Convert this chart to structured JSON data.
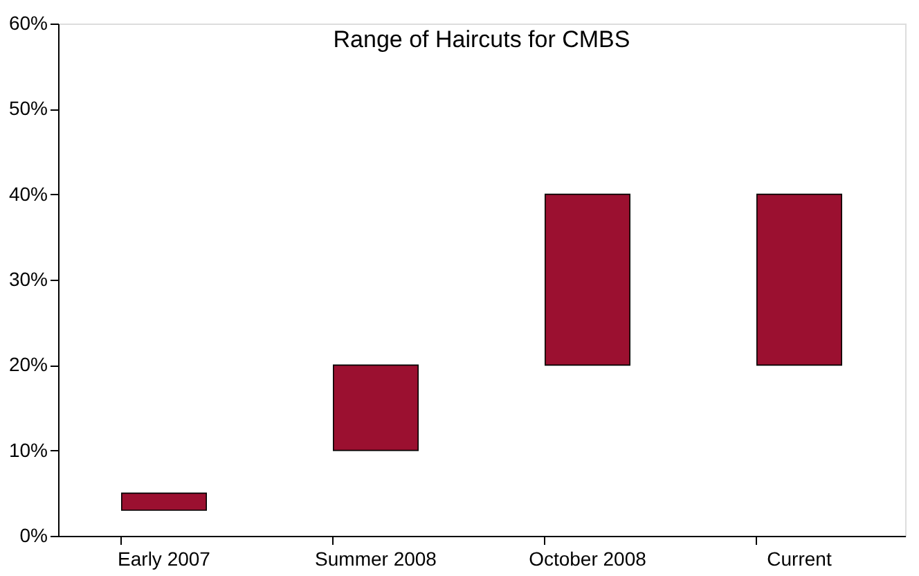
{
  "chart_data": {
    "type": "bar",
    "title": "Range of Haircuts for CMBS",
    "categories": [
      "Early 2007",
      "Summer 2008",
      "October 2008",
      "Current"
    ],
    "base": [
      3,
      10,
      20,
      20
    ],
    "values": [
      2,
      10,
      20,
      20
    ],
    "color": "#9b1030",
    "ylim": [
      0,
      60
    ],
    "yticks": [
      {
        "value": 0,
        "label": "0%"
      },
      {
        "value": 10,
        "label": "10%"
      },
      {
        "value": 20,
        "label": "20%"
      },
      {
        "value": 30,
        "label": "30%"
      },
      {
        "value": 40,
        "label": "40%"
      },
      {
        "value": 50,
        "label": "50%"
      },
      {
        "value": 60,
        "label": "60%"
      }
    ],
    "grid": false
  }
}
